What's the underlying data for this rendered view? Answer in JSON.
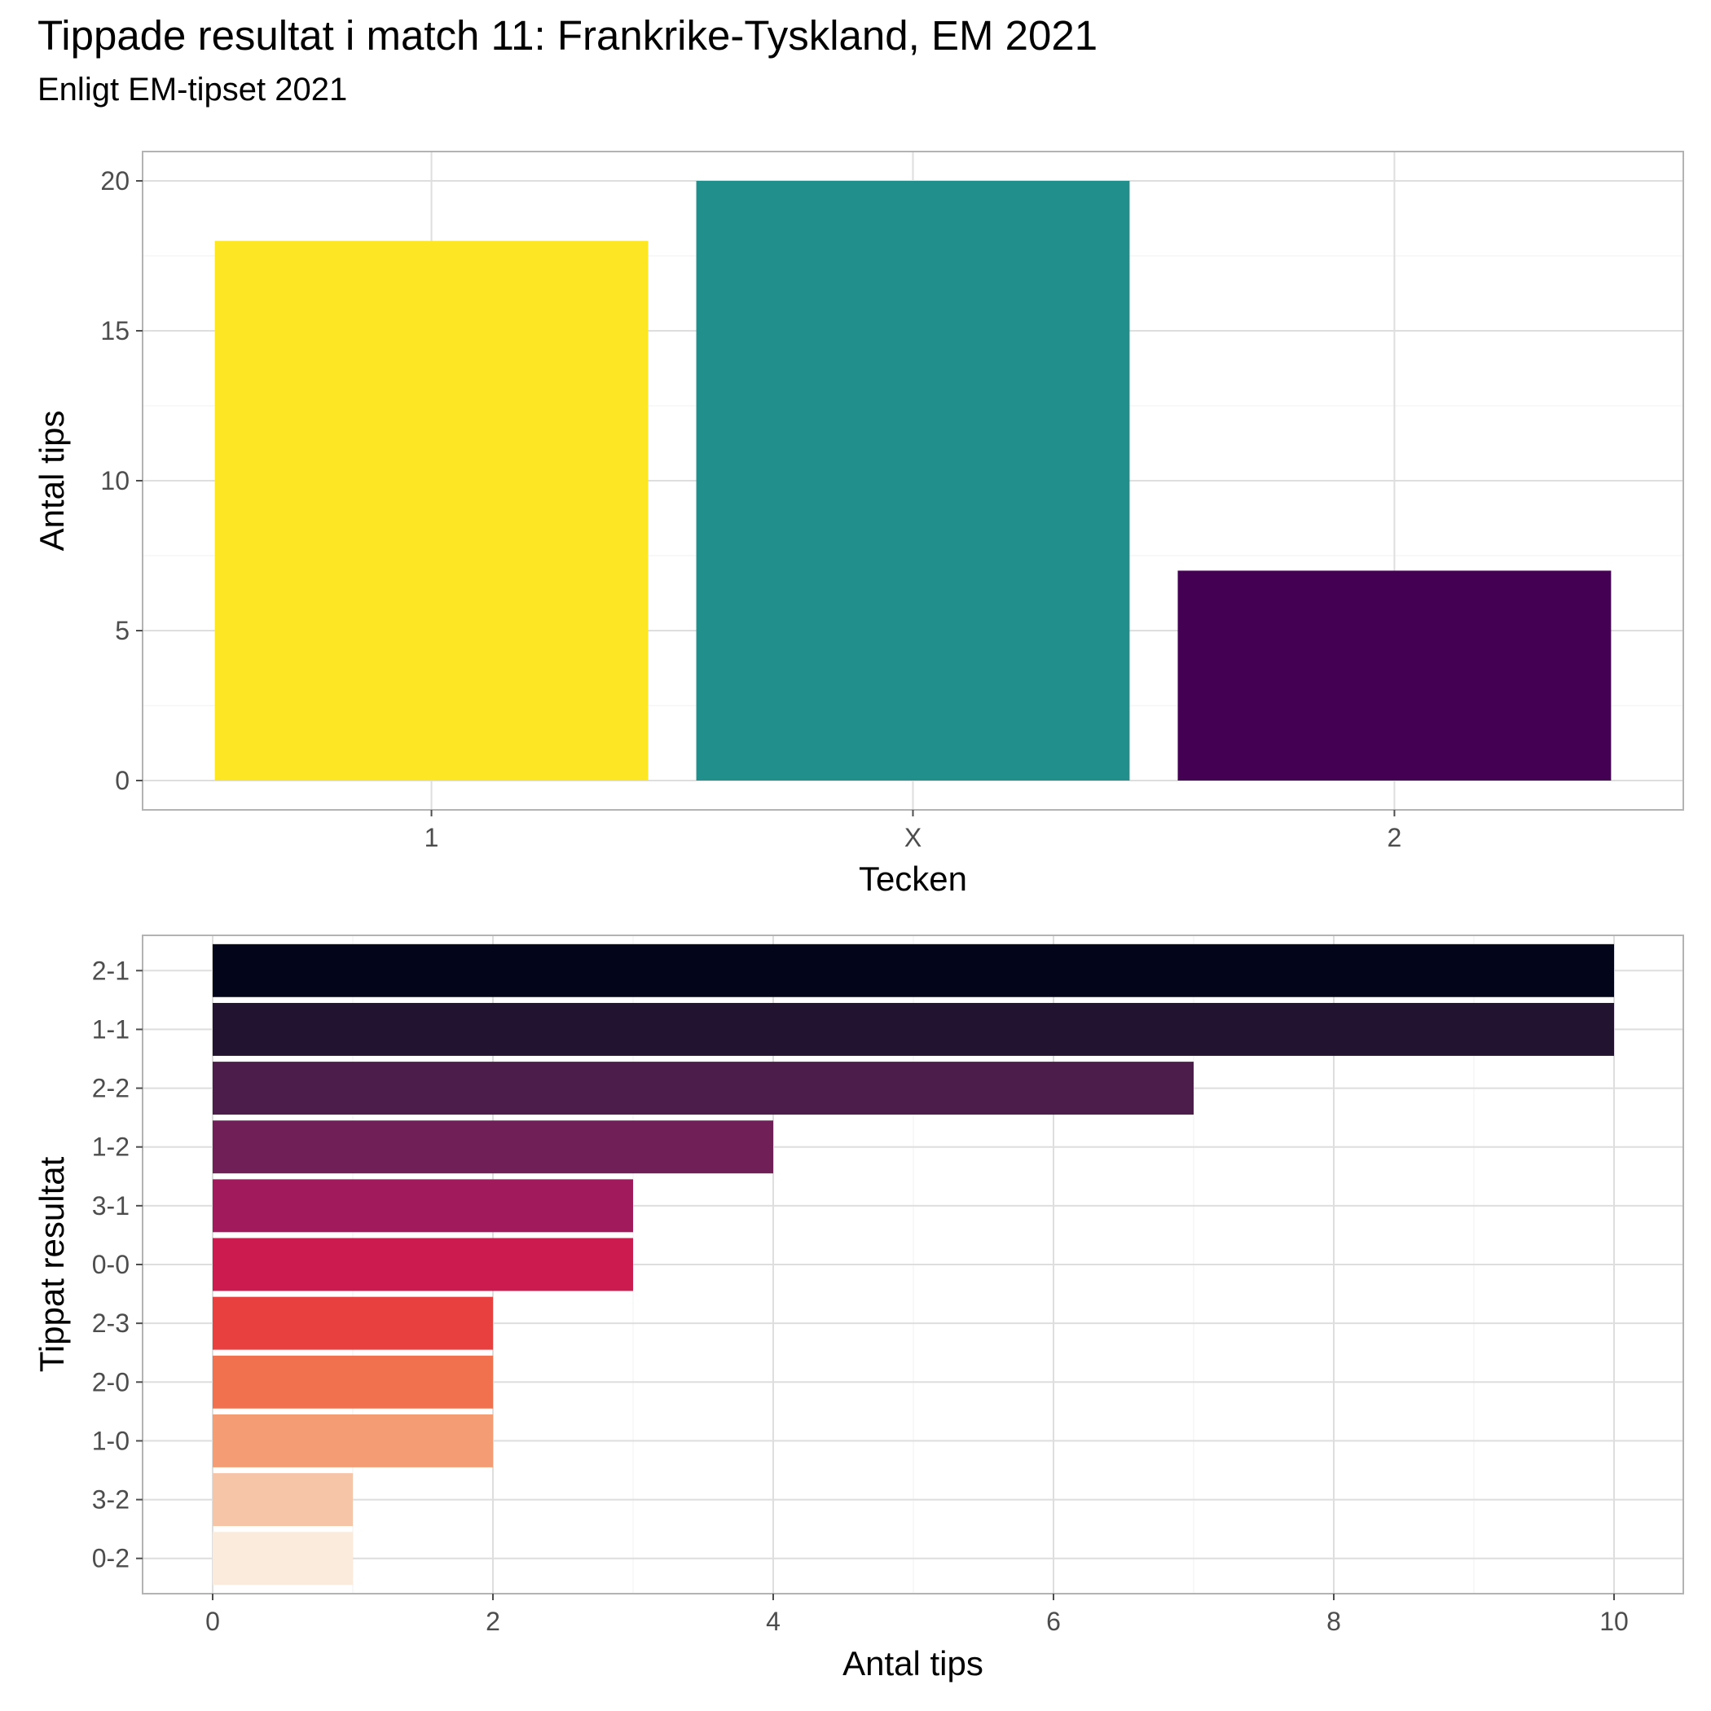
{
  "title": "Tippade resultat i match 11: Frankrike-Tyskland, EM 2021",
  "subtitle": "Enligt EM-tipset 2021",
  "chart_data": [
    {
      "type": "bar",
      "orientation": "vertical",
      "xlabel": "Tecken",
      "ylabel": "Antal tips",
      "categories": [
        "1",
        "X",
        "2"
      ],
      "values": [
        18,
        20,
        7
      ],
      "colors": [
        "#FDE725",
        "#21908C",
        "#440154"
      ],
      "ylim": [
        0,
        20
      ],
      "yticks": [
        0,
        5,
        10,
        15,
        20
      ],
      "grid": true,
      "legend": "none"
    },
    {
      "type": "bar",
      "orientation": "horizontal",
      "xlabel": "Antal tips",
      "ylabel": "Tippat resultat",
      "categories": [
        "2-1",
        "1-1",
        "2-2",
        "1-2",
        "3-1",
        "0-0",
        "2-3",
        "2-0",
        "1-0",
        "3-2",
        "0-2"
      ],
      "values": [
        10,
        10,
        7,
        4,
        3,
        3,
        2,
        2,
        2,
        1,
        1
      ],
      "colors": [
        "#03051A",
        "#221331",
        "#4C1D4B",
        "#711F57",
        "#A11A5B",
        "#CB1B4F",
        "#E83F3F",
        "#F1714E",
        "#F49C73",
        "#F6C4A7",
        "#FAEBDD"
      ],
      "xlim": [
        0,
        10
      ],
      "xticks": [
        0,
        2,
        4,
        6,
        8,
        10
      ],
      "grid": true,
      "legend": "none"
    }
  ]
}
